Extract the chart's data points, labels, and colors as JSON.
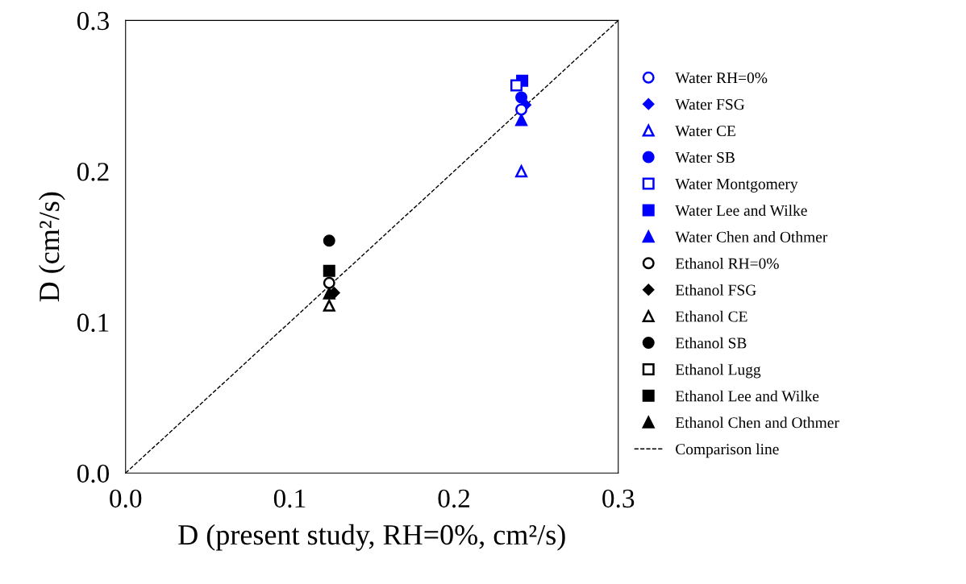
{
  "chart_data": {
    "type": "scatter",
    "xlabel": "D (present study, RH=0%, cm²/s)",
    "ylabel": "D (cm²/s)",
    "xlim": [
      0,
      0.3
    ],
    "ylim": [
      0,
      0.3
    ],
    "xticks": [
      {
        "value": 0,
        "label": "0.0"
      },
      0.1,
      0.2,
      0.3
    ],
    "yticks": [
      {
        "value": 0,
        "label": "0.0"
      },
      0.1,
      0.2,
      0.3
    ],
    "grid": false,
    "legend": "right",
    "series": [
      {
        "name": "Water RH=0%",
        "color": "#0000ff",
        "marker": "circle-open",
        "x": [
          0.241
        ],
        "values": [
          0.241
        ]
      },
      {
        "name": "Water FSG",
        "color": "#0000ff",
        "marker": "diamond",
        "x": [
          0.2435
        ],
        "values": [
          0.244
        ]
      },
      {
        "name": "Water CE",
        "color": "#0000ff",
        "marker": "triangle-open",
        "x": [
          0.241
        ],
        "values": [
          0.2
        ]
      },
      {
        "name": "Water SB",
        "color": "#0000ff",
        "marker": "circle",
        "x": [
          0.241
        ],
        "values": [
          0.249
        ]
      },
      {
        "name": "Water Montgomery",
        "color": "#0000ff",
        "marker": "square-open",
        "x": [
          0.238
        ],
        "values": [
          0.257
        ]
      },
      {
        "name": "Water Lee and Wilke",
        "color": "#0000ff",
        "marker": "square",
        "x": [
          0.2415
        ],
        "values": [
          0.26
        ]
      },
      {
        "name": "Water Chen and Othmer",
        "color": "#0000ff",
        "marker": "triangle",
        "x": [
          0.241
        ],
        "values": [
          0.234
        ]
      },
      {
        "name": "Ethanol RH=0%",
        "color": "#000000",
        "marker": "circle-open",
        "x": [
          0.124
        ],
        "values": [
          0.126
        ]
      },
      {
        "name": "Ethanol FSG",
        "color": "#000000",
        "marker": "diamond",
        "x": [
          0.127
        ],
        "values": [
          0.1195
        ]
      },
      {
        "name": "Ethanol CE",
        "color": "#000000",
        "marker": "triangle-open",
        "x": [
          0.124
        ],
        "values": [
          0.111
        ]
      },
      {
        "name": "Ethanol SB",
        "color": "#000000",
        "marker": "circle",
        "x": [
          0.124
        ],
        "values": [
          0.154
        ]
      },
      {
        "name": "Ethanol Lugg",
        "color": "#000000",
        "marker": "square-open",
        "x": [
          null
        ],
        "values": [
          null
        ]
      },
      {
        "name": "Ethanol Lee and Wilke",
        "color": "#000000",
        "marker": "square",
        "x": [
          0.124
        ],
        "values": [
          0.134
        ]
      },
      {
        "name": "Ethanol Chen and Othmer",
        "color": "#000000",
        "marker": "triangle",
        "x": [
          0.124
        ],
        "values": [
          0.119
        ]
      },
      {
        "name": "Comparison line",
        "type": "line",
        "color": "#000000",
        "line_style": "dashed",
        "x": [
          0,
          0.3
        ],
        "values": [
          0,
          0.3
        ]
      }
    ]
  }
}
